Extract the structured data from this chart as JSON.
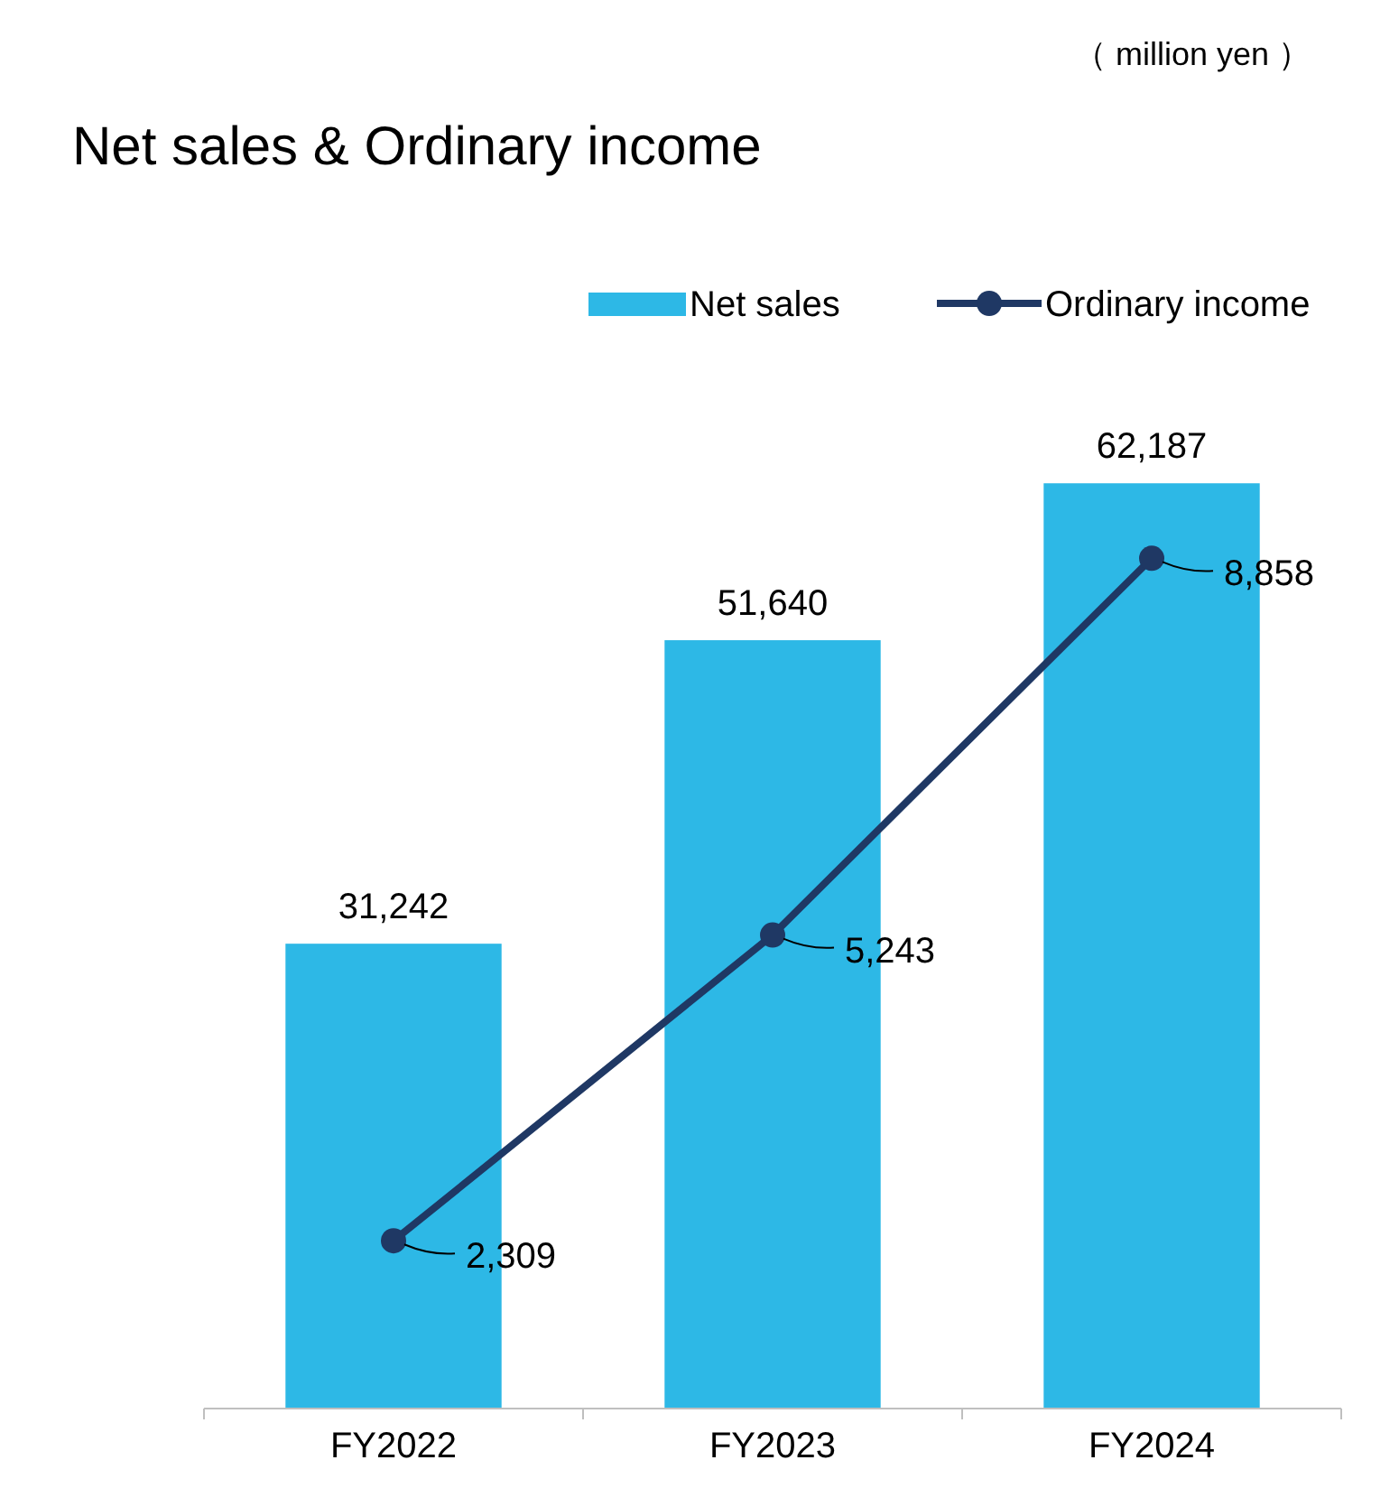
{
  "chart_data": {
    "type": "bar",
    "title": "Net sales & Ordinary income",
    "annotations": [
      "（ million yen ）"
    ],
    "categories": [
      "FY2022",
      "FY2023",
      "FY2024"
    ],
    "series": [
      {
        "name": "Net sales",
        "color": "#2db8e6",
        "values": [
          31242,
          51640,
          62187
        ],
        "value_labels": [
          "31,242",
          "51,640",
          "62,187"
        ]
      },
      {
        "type": "line",
        "name": "Ordinary income",
        "color": "#1f3864",
        "values": [
          2309,
          5243,
          8858
        ],
        "value_labels": [
          "2,309",
          "5,243",
          "8,858"
        ],
        "axis": "y2"
      }
    ],
    "data_labels": true,
    "legend": "top right",
    "marker": "circle"
  }
}
